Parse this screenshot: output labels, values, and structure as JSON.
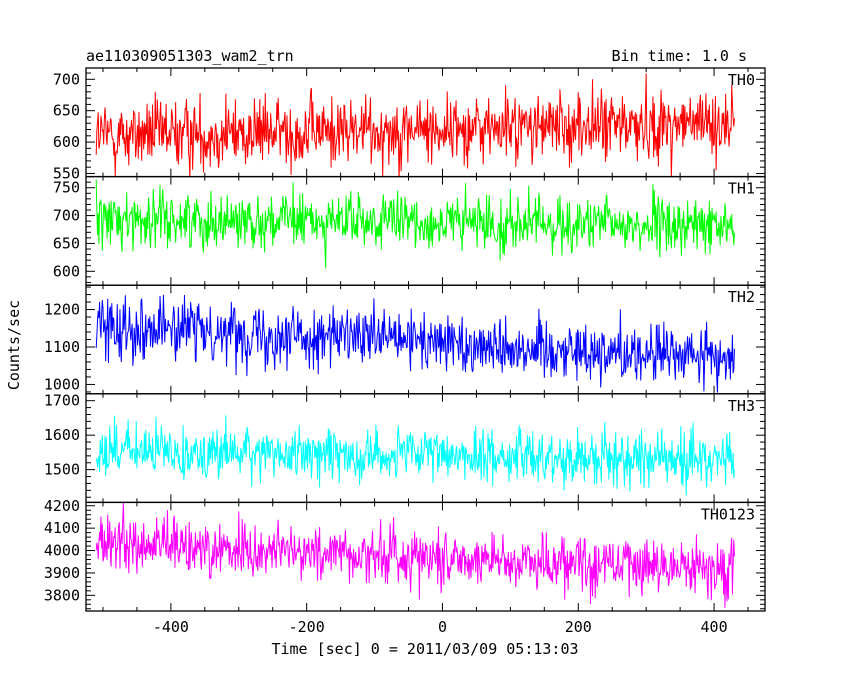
{
  "header": {
    "title": "ae110309051303_wam2_trn",
    "bin_time": "Bin time: 1.0 s"
  },
  "chart_data": {
    "type": "line",
    "xlabel": "Time [sec] 0 = 2011/03/09 05:13:03",
    "ylabel": "Counts/sec",
    "xlim": [
      -525,
      475
    ],
    "x_ticks": [
      "-400",
      "-200",
      "0",
      "200",
      "400"
    ],
    "x_tick_values": [
      -400,
      -200,
      0,
      200,
      400
    ],
    "x_range_data": [
      -510,
      430
    ],
    "bin_time_s": 1.0,
    "grid": false,
    "panels": [
      {
        "name": "TH0",
        "color": "#ff0000",
        "ylim": [
          545,
          718
        ],
        "y_ticks": [
          "550",
          "600",
          "650",
          "700"
        ],
        "y_tick_values": [
          550,
          600,
          650,
          700
        ],
        "start_level": 610,
        "end_level": 630,
        "noise_std": 28
      },
      {
        "name": "TH1",
        "color": "#00ff00",
        "ylim": [
          575,
          770
        ],
        "y_ticks": [
          "600",
          "650",
          "700",
          "750"
        ],
        "y_tick_values": [
          600,
          650,
          700,
          750
        ],
        "start_level": 695,
        "end_level": 680,
        "noise_std": 25
      },
      {
        "name": "TH2",
        "color": "#0000ff",
        "ylim": [
          975,
          1265
        ],
        "y_ticks": [
          "1000",
          "1100",
          "1200"
        ],
        "y_tick_values": [
          1000,
          1100,
          1200
        ],
        "start_level": 1160,
        "end_level": 1070,
        "noise_std": 40
      },
      {
        "name": "TH3",
        "color": "#00ffff",
        "ylim": [
          1405,
          1720
        ],
        "y_ticks": [
          "1500",
          "1600",
          "1700"
        ],
        "y_tick_values": [
          1500,
          1600,
          1700
        ],
        "start_level": 1555,
        "end_level": 1530,
        "noise_std": 38
      },
      {
        "name": "TH0123",
        "color": "#ff00ff",
        "ylim": [
          3730,
          4215
        ],
        "y_ticks": [
          "3800",
          "3900",
          "4000",
          "4100",
          "4200"
        ],
        "y_tick_values": [
          3800,
          3900,
          4000,
          4100,
          4200
        ],
        "start_level": 4030,
        "end_level": 3920,
        "noise_std": 65
      }
    ]
  }
}
